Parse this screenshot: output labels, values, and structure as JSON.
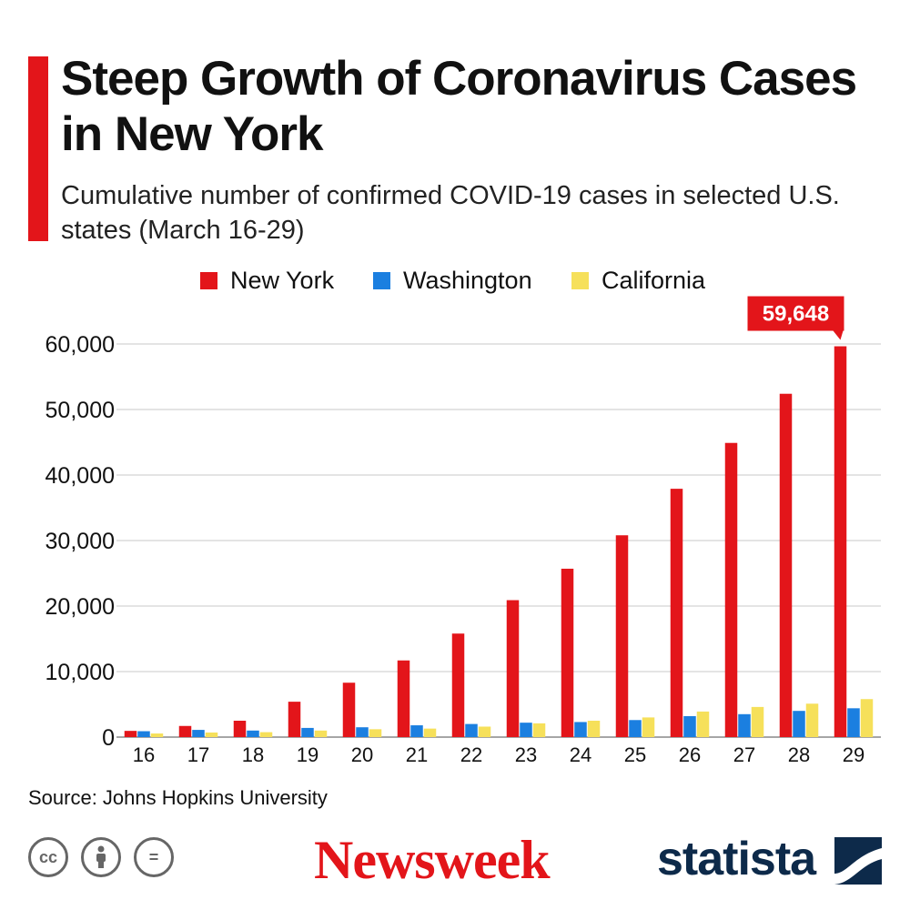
{
  "header": {
    "title_line1": "Steep Growth of Coronavirus Cases",
    "title_line2": "in New York",
    "subtitle_line1": "Cumulative number of confirmed COVID-19 cases in selected U.S.",
    "subtitle_line2": "states (March 16-29)"
  },
  "colors": {
    "new_york": "#e3151a",
    "washington": "#1b7fe0",
    "california": "#f6e05a",
    "accent": "#e3151a",
    "grid": "#c8c8c8",
    "statista": "#0d2a4a"
  },
  "legend": [
    {
      "label": "New York",
      "color": "#e3151a"
    },
    {
      "label": "Washington",
      "color": "#1b7fe0"
    },
    {
      "label": "California",
      "color": "#f6e05a"
    }
  ],
  "chart_data": {
    "type": "bar",
    "categories": [
      "16",
      "17",
      "18",
      "19",
      "20",
      "21",
      "22",
      "23",
      "24",
      "25",
      "26",
      "27",
      "28",
      "29"
    ],
    "series": [
      {
        "name": "New York",
        "color": "#e3151a",
        "values": [
          950,
          1700,
          2500,
          5400,
          8300,
          11700,
          15800,
          20900,
          25700,
          30800,
          37900,
          44900,
          52400,
          59648
        ]
      },
      {
        "name": "Washington",
        "color": "#1b7fe0",
        "values": [
          900,
          1100,
          1000,
          1400,
          1500,
          1800,
          2000,
          2200,
          2300,
          2600,
          3200,
          3500,
          4000,
          4400
        ]
      },
      {
        "name": "California",
        "color": "#f6e05a",
        "values": [
          550,
          700,
          750,
          1000,
          1200,
          1300,
          1600,
          2100,
          2500,
          3000,
          3900,
          4600,
          5100,
          5800
        ]
      }
    ],
    "yticks": [
      0,
      10000,
      20000,
      30000,
      40000,
      50000,
      60000
    ],
    "ytick_labels": [
      "0",
      "10,000",
      "20,000",
      "30,000",
      "40,000",
      "50,000",
      "60,000"
    ],
    "ylim": [
      0,
      60000
    ],
    "grid": true,
    "legend_position": "top",
    "annotation": {
      "label": "59,648",
      "category": "29",
      "series": "New York"
    }
  },
  "source": "Source: Johns Hopkins University",
  "footer": {
    "license_icons": [
      "cc-icon",
      "attribution-icon",
      "no-derivatives-icon"
    ],
    "license_glyphs": [
      "cc",
      "",
      "="
    ],
    "newsweek": "Newsweek",
    "statista": "statista"
  }
}
